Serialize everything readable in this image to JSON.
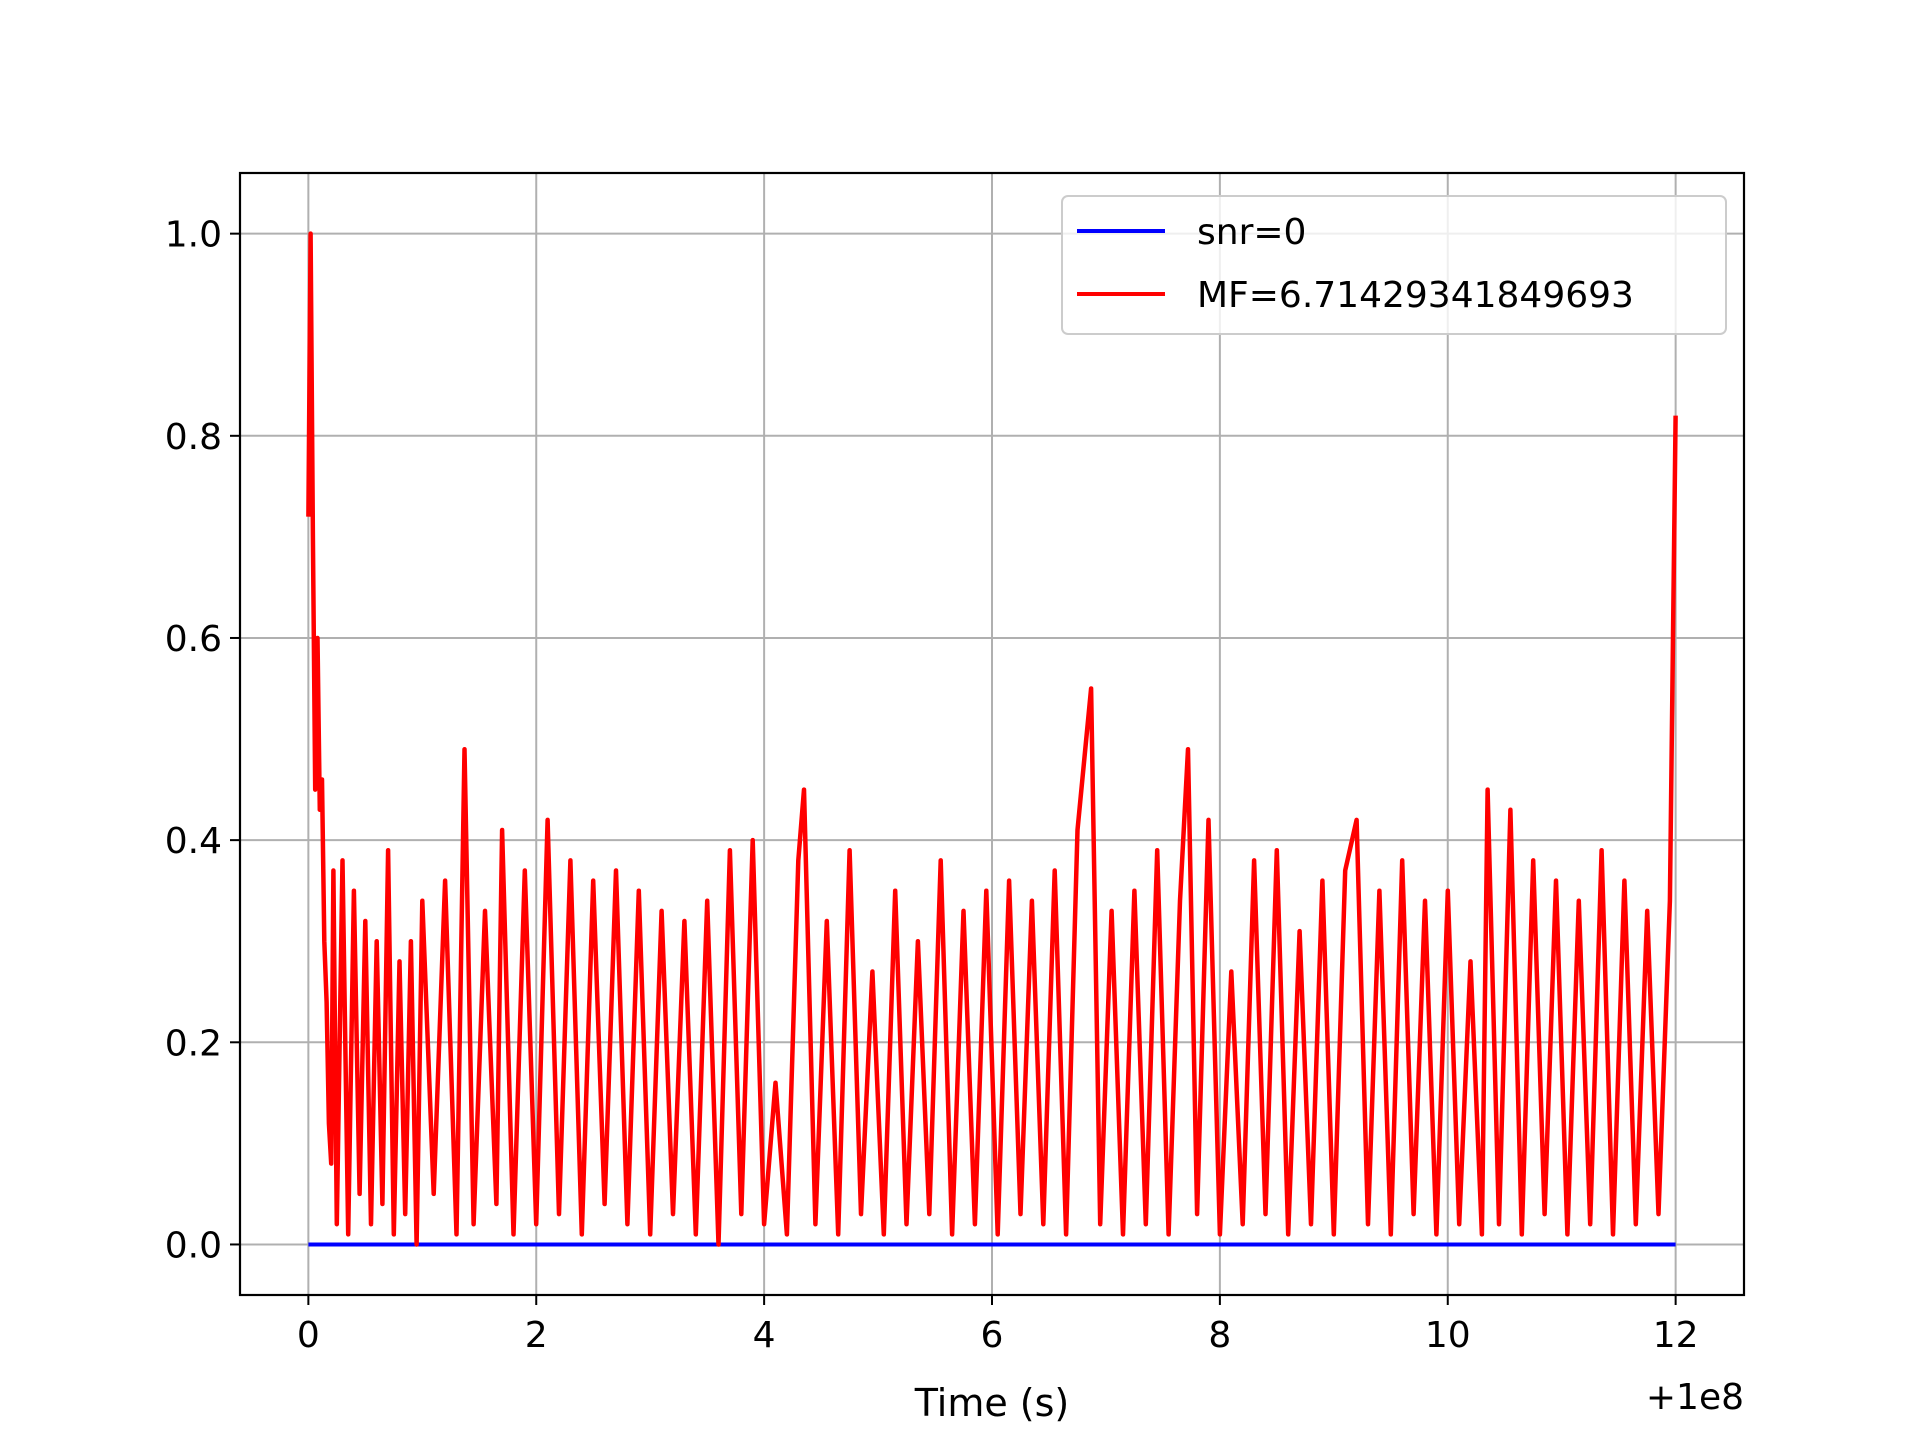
{
  "chart_data": {
    "type": "line",
    "xlabel": "Time (s)",
    "ylabel": "",
    "x_offset_label": "+1e8",
    "xlim": [
      -0.6,
      12.6
    ],
    "ylim": [
      -0.05,
      1.06
    ],
    "xticks": [
      0,
      2,
      4,
      6,
      8,
      10,
      12
    ],
    "xtick_labels": [
      "0",
      "2",
      "4",
      "6",
      "8",
      "10",
      "12"
    ],
    "yticks": [
      0.0,
      0.2,
      0.4,
      0.6,
      0.8,
      1.0
    ],
    "ytick_labels": [
      "0.0",
      "0.2",
      "0.4",
      "0.6",
      "0.8",
      "1.0"
    ],
    "grid": true,
    "legend_position": "top-right",
    "series": [
      {
        "name": "snr=0",
        "color": "#0000ff",
        "x": [
          0,
          12
        ],
        "y": [
          0.0,
          0.0
        ]
      },
      {
        "name": "MF=6.71429341849693",
        "color": "#ff0000",
        "x": [
          0,
          0.02,
          0.04,
          0.06,
          0.08,
          0.1,
          0.12,
          0.14,
          0.16,
          0.18,
          0.2,
          0.22,
          0.25,
          0.3,
          0.35,
          0.4,
          0.45,
          0.5,
          0.55,
          0.6,
          0.65,
          0.7,
          0.75,
          0.8,
          0.85,
          0.9,
          0.95,
          1.0,
          1.1,
          1.2,
          1.3,
          1.37,
          1.45,
          1.55,
          1.65,
          1.7,
          1.8,
          1.9,
          2.0,
          2.1,
          2.2,
          2.3,
          2.4,
          2.5,
          2.6,
          2.7,
          2.8,
          2.9,
          3.0,
          3.1,
          3.2,
          3.3,
          3.4,
          3.5,
          3.6,
          3.7,
          3.8,
          3.9,
          4.0,
          4.1,
          4.2,
          4.3,
          4.35,
          4.45,
          4.55,
          4.65,
          4.75,
          4.85,
          4.95,
          5.05,
          5.15,
          5.25,
          5.35,
          5.45,
          5.55,
          5.65,
          5.75,
          5.85,
          5.95,
          6.05,
          6.15,
          6.25,
          6.35,
          6.45,
          6.55,
          6.65,
          6.75,
          6.87,
          6.95,
          7.05,
          7.15,
          7.25,
          7.35,
          7.45,
          7.55,
          7.65,
          7.72,
          7.8,
          7.9,
          8.0,
          8.1,
          8.2,
          8.3,
          8.4,
          8.5,
          8.6,
          8.7,
          8.8,
          8.9,
          9.0,
          9.1,
          9.2,
          9.3,
          9.4,
          9.5,
          9.6,
          9.7,
          9.8,
          9.9,
          10.0,
          10.1,
          10.2,
          10.3,
          10.35,
          10.45,
          10.55,
          10.65,
          10.75,
          10.85,
          10.95,
          11.05,
          11.15,
          11.25,
          11.35,
          11.45,
          11.55,
          11.65,
          11.75,
          11.85,
          11.95,
          12.0
        ],
        "y": [
          0.72,
          1.0,
          0.7,
          0.45,
          0.6,
          0.43,
          0.46,
          0.3,
          0.24,
          0.12,
          0.08,
          0.37,
          0.02,
          0.38,
          0.01,
          0.35,
          0.05,
          0.32,
          0.02,
          0.3,
          0.04,
          0.39,
          0.01,
          0.28,
          0.03,
          0.3,
          0.0,
          0.34,
          0.05,
          0.36,
          0.01,
          0.49,
          0.02,
          0.33,
          0.04,
          0.41,
          0.01,
          0.37,
          0.02,
          0.42,
          0.03,
          0.38,
          0.01,
          0.36,
          0.04,
          0.37,
          0.02,
          0.35,
          0.01,
          0.33,
          0.03,
          0.32,
          0.01,
          0.34,
          0.0,
          0.39,
          0.03,
          0.4,
          0.02,
          0.16,
          0.01,
          0.38,
          0.45,
          0.02,
          0.32,
          0.01,
          0.39,
          0.03,
          0.27,
          0.01,
          0.35,
          0.02,
          0.3,
          0.03,
          0.38,
          0.01,
          0.33,
          0.02,
          0.35,
          0.01,
          0.36,
          0.03,
          0.34,
          0.02,
          0.37,
          0.01,
          0.41,
          0.55,
          0.02,
          0.33,
          0.01,
          0.35,
          0.02,
          0.39,
          0.01,
          0.34,
          0.49,
          0.03,
          0.42,
          0.01,
          0.27,
          0.02,
          0.38,
          0.03,
          0.39,
          0.01,
          0.31,
          0.02,
          0.36,
          0.01,
          0.37,
          0.42,
          0.02,
          0.35,
          0.01,
          0.38,
          0.03,
          0.34,
          0.01,
          0.35,
          0.02,
          0.28,
          0.01,
          0.45,
          0.02,
          0.43,
          0.01,
          0.38,
          0.03,
          0.36,
          0.01,
          0.34,
          0.02,
          0.39,
          0.01,
          0.36,
          0.02,
          0.33,
          0.03,
          0.34,
          0.82
        ]
      }
    ]
  }
}
